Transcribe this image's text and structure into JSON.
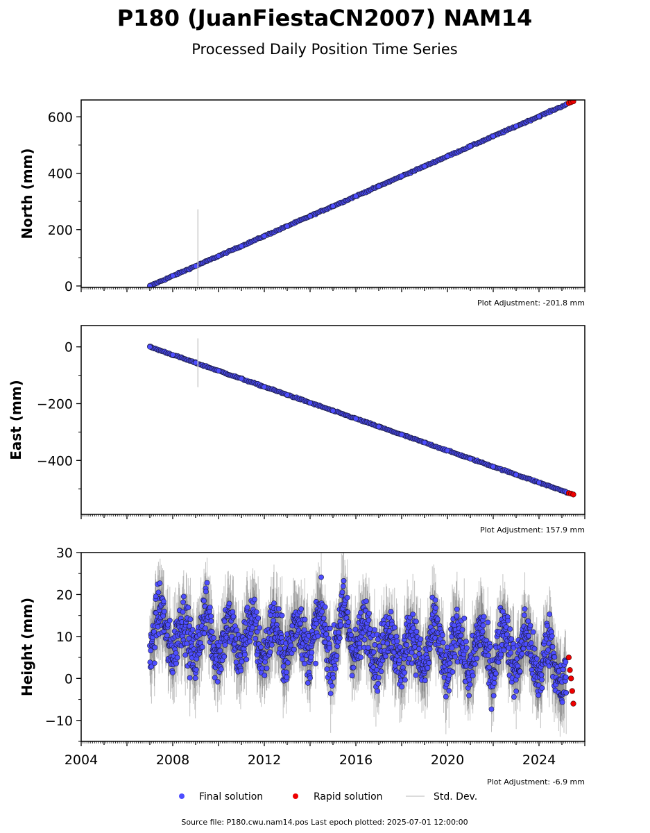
{
  "title": "P180 (JuanFiestaCN2007) NAM14",
  "subtitle": "Processed Daily Position Time Series",
  "source": "Source file: P180.cwu.nam14.pos  Last epoch plotted: 2025-07-01 12:00:00",
  "legend": {
    "final": "Final solution",
    "rapid": "Rapid solution",
    "std": "Std. Dev."
  },
  "colors": {
    "final": "#4d4dff",
    "rapid": "#ee0000",
    "std": "#c8c8c8",
    "edge": "#1a1a3a"
  },
  "chart_data": [
    {
      "type": "scatter",
      "ylabel": "North (mm)",
      "adjustment": "Plot Adjustment: -201.8 mm",
      "xlim": [
        2004,
        2026
      ],
      "ylim": [
        -5,
        660
      ],
      "yticks": [
        0,
        200,
        400,
        600
      ],
      "ytick_labels": [
        "0",
        "200",
        "400",
        "600"
      ],
      "trend": {
        "start": [
          2007.0,
          0
        ],
        "end": [
          2025.5,
          655
        ]
      },
      "series": [
        {
          "name": "Final solution",
          "x": [
            2007.0,
            2008.0,
            2009.0,
            2010.0,
            2011.0,
            2012.0,
            2013.0,
            2014.0,
            2015.0,
            2016.0,
            2017.0,
            2018.0,
            2019.0,
            2020.0,
            2021.0,
            2022.0,
            2023.0,
            2024.0,
            2025.2
          ],
          "y": [
            0,
            36,
            71,
            106,
            141,
            177,
            212,
            248,
            283,
            319,
            354,
            390,
            425,
            460,
            496,
            531,
            567,
            602,
            645
          ]
        },
        {
          "name": "Rapid solution",
          "x": [
            2025.3,
            2025.4,
            2025.5
          ],
          "y": [
            649,
            652,
            655
          ]
        }
      ],
      "outlier_errorbar": {
        "x": 2009.1,
        "y_low": 0,
        "y_high": 272
      }
    },
    {
      "type": "scatter",
      "ylabel": "East (mm)",
      "adjustment": "Plot Adjustment: 157.9 mm",
      "xlim": [
        2004,
        2026
      ],
      "ylim": [
        -590,
        75
      ],
      "yticks": [
        0,
        -200,
        -400
      ],
      "ytick_labels": [
        "0",
        "−200",
        "−400"
      ],
      "trend": {
        "start": [
          2007.0,
          0
        ],
        "end": [
          2025.5,
          -520
        ]
      },
      "series": [
        {
          "name": "Final solution",
          "x": [
            2007.0,
            2008.0,
            2009.0,
            2010.0,
            2011.0,
            2012.0,
            2013.0,
            2014.0,
            2015.0,
            2016.0,
            2017.0,
            2018.0,
            2019.0,
            2020.0,
            2021.0,
            2022.0,
            2023.0,
            2024.0,
            2025.2
          ],
          "y": [
            0,
            -28,
            -56,
            -84,
            -112,
            -141,
            -169,
            -197,
            -225,
            -253,
            -281,
            -309,
            -337,
            -365,
            -394,
            -422,
            -450,
            -478,
            -512
          ]
        },
        {
          "name": "Rapid solution",
          "x": [
            2025.3,
            2025.4,
            2025.5
          ],
          "y": [
            -515,
            -517,
            -520
          ]
        }
      ],
      "outlier_errorbar": {
        "x": 2009.1,
        "y_low": -142,
        "y_high": 30
      }
    },
    {
      "type": "scatter",
      "ylabel": "Height (mm)",
      "adjustment": "Plot Adjustment: -6.9 mm",
      "xlim": [
        2004,
        2026
      ],
      "ylim": [
        -15,
        30
      ],
      "yticks": [
        -10,
        0,
        10,
        20,
        30
      ],
      "ytick_labels": [
        "−10",
        "0",
        "10",
        "20",
        "30"
      ],
      "xticks": [
        2004,
        2008,
        2012,
        2016,
        2020,
        2024
      ],
      "xtick_labels": [
        "2004",
        "2008",
        "2012",
        "2016",
        "2020",
        "2024"
      ],
      "series": [
        {
          "name": "Final solution",
          "x": [
            2007.0,
            2007.5,
            2008.0,
            2008.5,
            2009.0,
            2009.5,
            2010.0,
            2010.5,
            2011.0,
            2011.5,
            2012.0,
            2012.5,
            2013.0,
            2013.5,
            2014.0,
            2014.5,
            2015.0,
            2015.5,
            2016.0,
            2016.5,
            2017.0,
            2017.5,
            2018.0,
            2018.5,
            2019.0,
            2019.5,
            2020.0,
            2020.5,
            2021.0,
            2021.5,
            2022.0,
            2022.5,
            2023.0,
            2023.5,
            2024.0,
            2024.5,
            2025.0
          ],
          "y": [
            10,
            12,
            11,
            9,
            10,
            11,
            10,
            8,
            11,
            9,
            10,
            8,
            10,
            9,
            11,
            10,
            9,
            12,
            11,
            8,
            9,
            7,
            8,
            6,
            7,
            8,
            6,
            7,
            6,
            7,
            6,
            8,
            7,
            6,
            5,
            4,
            2
          ]
        },
        {
          "name": "Rapid solution",
          "x": [
            2025.3,
            2025.35,
            2025.4,
            2025.45,
            2025.5
          ],
          "y": [
            5,
            2,
            0,
            -3,
            -6
          ]
        }
      ]
    }
  ]
}
